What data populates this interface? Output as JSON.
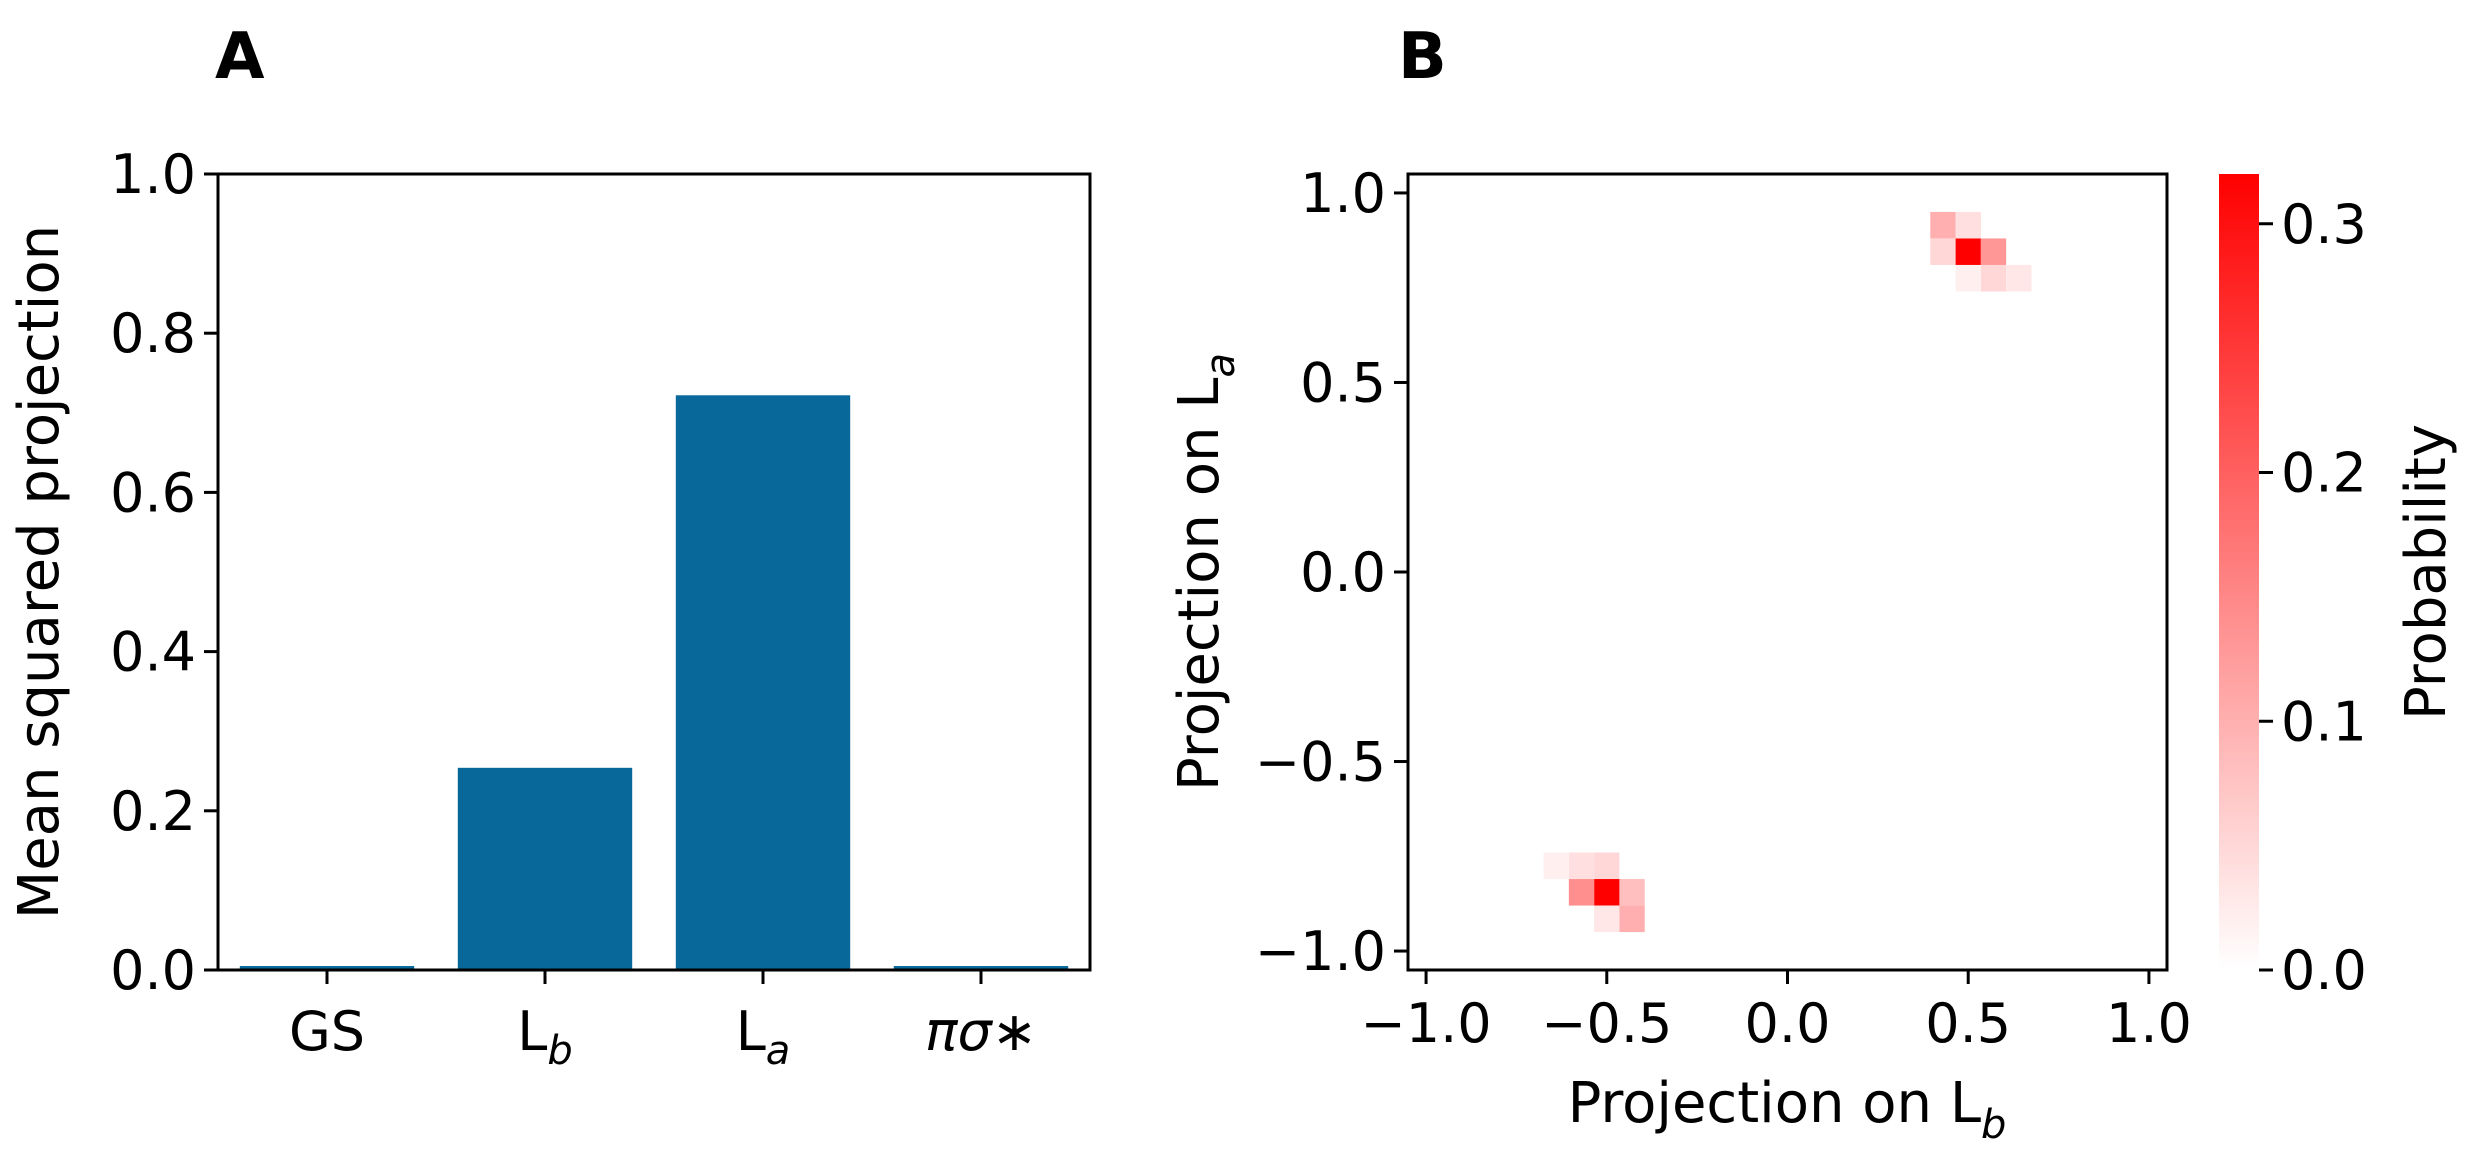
{
  "chart_data": [
    {
      "panel": "A",
      "type": "bar",
      "categories": [
        "GS",
        "L_b",
        "L_a",
        "πσ*"
      ],
      "category_labels": [
        {
          "main": "GS",
          "sub": ""
        },
        {
          "main": "L",
          "sub": "b"
        },
        {
          "main": "L",
          "sub": "a"
        },
        {
          "main": "πσ∗",
          "sub": "",
          "italic": true
        }
      ],
      "values": [
        0.005,
        0.254,
        0.722,
        0.005
      ],
      "bar_color": "#08689a",
      "title": "",
      "xlabel": "",
      "ylabel": "Mean squared projection",
      "ylim": [
        0,
        1.0
      ],
      "yticks": [
        "0.0",
        "0.2",
        "0.4",
        "0.6",
        "0.8",
        "1.0"
      ]
    },
    {
      "panel": "B",
      "type": "heatmap",
      "xlabel": {
        "main": "Projection on L",
        "sub": "b"
      },
      "ylabel": {
        "main": "Projection on L",
        "sub": "a"
      },
      "xlim": [
        -1.05,
        1.05
      ],
      "ylim": [
        -1.05,
        1.05
      ],
      "xticks": [
        "−1.0",
        "−0.5",
        "0.0",
        "0.5",
        "1.0"
      ],
      "yticks": [
        "−1.0",
        "−0.5",
        "0.0",
        "0.5",
        "1.0"
      ],
      "bin_size": 0.07,
      "cells": [
        {
          "x": 0.5,
          "y": 0.845,
          "p": 0.32
        },
        {
          "x": 0.43,
          "y": 0.915,
          "p": 0.1
        },
        {
          "x": 0.43,
          "y": 0.845,
          "p": 0.05
        },
        {
          "x": 0.5,
          "y": 0.915,
          "p": 0.04
        },
        {
          "x": 0.57,
          "y": 0.845,
          "p": 0.13
        },
        {
          "x": 0.57,
          "y": 0.775,
          "p": 0.05
        },
        {
          "x": 0.5,
          "y": 0.775,
          "p": 0.02
        },
        {
          "x": 0.64,
          "y": 0.775,
          "p": 0.03
        },
        {
          "x": -0.5,
          "y": -0.845,
          "p": 0.32
        },
        {
          "x": -0.57,
          "y": -0.845,
          "p": 0.14
        },
        {
          "x": -0.57,
          "y": -0.775,
          "p": 0.04
        },
        {
          "x": -0.64,
          "y": -0.775,
          "p": 0.02
        },
        {
          "x": -0.43,
          "y": -0.845,
          "p": 0.08
        },
        {
          "x": -0.43,
          "y": -0.915,
          "p": 0.1
        },
        {
          "x": -0.5,
          "y": -0.915,
          "p": 0.03
        },
        {
          "x": -0.5,
          "y": -0.775,
          "p": 0.05
        }
      ],
      "colorbar": {
        "label": "Probability",
        "range": [
          0,
          0.32
        ],
        "ticks": [
          "0.0",
          "0.1",
          "0.2",
          "0.3"
        ],
        "tick_values": [
          0.0,
          0.1,
          0.2,
          0.3
        ],
        "color_low": "#ffffff",
        "color_high": "#ff0000"
      }
    }
  ],
  "panels": {
    "a_label": "A",
    "b_label": "B"
  }
}
